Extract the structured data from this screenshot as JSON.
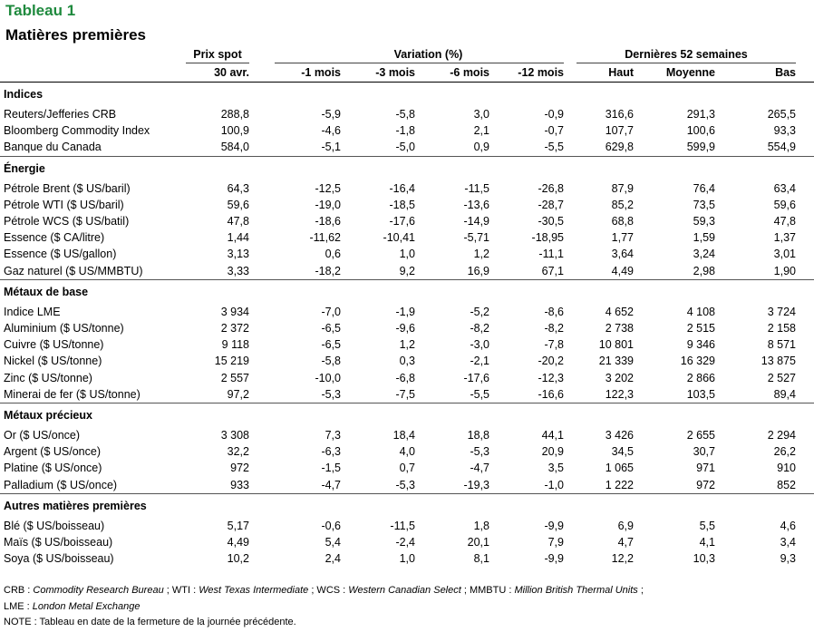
{
  "title": "Tableau 1",
  "subtitle": "Matières premières",
  "header": {
    "group_spot": "Prix spot",
    "group_var": "Variation (%)",
    "group_52": "Dernières 52 semaines",
    "cols": [
      "30 avr.",
      "-1 mois",
      "-3 mois",
      "-6 mois",
      "-12 mois",
      "Haut",
      "Moyenne",
      "Bas"
    ]
  },
  "sections": [
    {
      "name": "Indices",
      "rows": [
        [
          "Reuters/Jefferies CRB",
          "288,8",
          "-5,9",
          "-5,8",
          "3,0",
          "-0,9",
          "316,6",
          "291,3",
          "265,5"
        ],
        [
          "Bloomberg Commodity Index",
          "100,9",
          "-4,6",
          "-1,8",
          "2,1",
          "-0,7",
          "107,7",
          "100,6",
          "93,3"
        ],
        [
          "Banque du Canada",
          "584,0",
          "-5,1",
          "-5,0",
          "0,9",
          "-5,5",
          "629,8",
          "599,9",
          "554,9"
        ]
      ]
    },
    {
      "name": "Énergie",
      "rows": [
        [
          "Pétrole Brent ($ US/baril)",
          "64,3",
          "-12,5",
          "-16,4",
          "-11,5",
          "-26,8",
          "87,9",
          "76,4",
          "63,4"
        ],
        [
          "Pétrole WTI ($ US/baril)",
          "59,6",
          "-19,0",
          "-18,5",
          "-13,6",
          "-28,7",
          "85,2",
          "73,5",
          "59,6"
        ],
        [
          "Pétrole WCS ($ US/batil)",
          "47,8",
          "-18,6",
          "-17,6",
          "-14,9",
          "-30,5",
          "68,8",
          "59,3",
          "47,8"
        ],
        [
          "Essence ($ CA/litre)",
          "1,44",
          "-11,62",
          "-10,41",
          "-5,71",
          "-18,95",
          "1,77",
          "1,59",
          "1,37"
        ],
        [
          "Essence ($ US/gallon)",
          "3,13",
          "0,6",
          "1,0",
          "1,2",
          "-11,1",
          "3,64",
          "3,24",
          "3,01"
        ],
        [
          "Gaz naturel ($ US/MMBTU)",
          "3,33",
          "-18,2",
          "9,2",
          "16,9",
          "67,1",
          "4,49",
          "2,98",
          "1,90"
        ]
      ]
    },
    {
      "name": "Métaux de base",
      "rows": [
        [
          "Indice LME",
          "3 934",
          "-7,0",
          "-1,9",
          "-5,2",
          "-8,6",
          "4 652",
          "4 108",
          "3 724"
        ],
        [
          "Aluminium ($ US/tonne)",
          "2 372",
          "-6,5",
          "-9,6",
          "-8,2",
          "-8,2",
          "2 738",
          "2 515",
          "2 158"
        ],
        [
          "Cuivre ($ US/tonne)",
          "9 118",
          "-6,5",
          "1,2",
          "-3,0",
          "-7,8",
          "10 801",
          "9 346",
          "8 571"
        ],
        [
          "Nickel ($ US/tonne)",
          "15 219",
          "-5,8",
          "0,3",
          "-2,1",
          "-20,2",
          "21 339",
          "16 329",
          "13 875"
        ],
        [
          "Zinc ($ US/tonne)",
          "2 557",
          "-10,0",
          "-6,8",
          "-17,6",
          "-12,3",
          "3 202",
          "2 866",
          "2 527"
        ],
        [
          "Minerai de fer ($ US/tonne)",
          "97,2",
          "-5,3",
          "-7,5",
          "-5,5",
          "-16,6",
          "122,3",
          "103,5",
          "89,4"
        ]
      ]
    },
    {
      "name": "Métaux précieux",
      "rows": [
        [
          "Or ($ US/once)",
          "3 308",
          "7,3",
          "18,4",
          "18,8",
          "44,1",
          "3 426",
          "2 655",
          "2 294"
        ],
        [
          "Argent ($ US/once)",
          "32,2",
          "-6,3",
          "4,0",
          "-5,3",
          "20,9",
          "34,5",
          "30,7",
          "26,2"
        ],
        [
          "Platine ($ US/once)",
          "972",
          "-1,5",
          "0,7",
          "-4,7",
          "3,5",
          "1 065",
          "971",
          "910"
        ],
        [
          "Palladium ($ US/once)",
          "933",
          "-4,7",
          "-5,3",
          "-19,3",
          "-1,0",
          "1 222",
          "972",
          "852"
        ]
      ]
    },
    {
      "name": "Autres matières premières",
      "rows": [
        [
          "Blé ($ US/boisseau)",
          "5,17",
          "-0,6",
          "-11,5",
          "1,8",
          "-9,9",
          "6,9",
          "5,5",
          "4,6"
        ],
        [
          "Maïs ($ US/boisseau)",
          "4,49",
          "5,4",
          "-2,4",
          "20,1",
          "7,9",
          "4,7",
          "4,1",
          "3,4"
        ],
        [
          "Soya ($ US/boisseau)",
          "10,2",
          "2,4",
          "1,0",
          "8,1",
          "-9,9",
          "12,2",
          "10,3",
          "9,3"
        ]
      ]
    }
  ],
  "notes": {
    "line1_parts": [
      {
        "t": "CRB : ",
        "i": false
      },
      {
        "t": "Commodity Research Bureau",
        "i": true
      },
      {
        "t": " ; WTI : ",
        "i": false
      },
      {
        "t": "West Texas Intermediate",
        "i": true
      },
      {
        "t": " ; WCS : ",
        "i": false
      },
      {
        "t": "Western Canadian Select",
        "i": true
      },
      {
        "t": " ; MMBTU : ",
        "i": false
      },
      {
        "t": "Million British Thermal Units",
        "i": true
      },
      {
        "t": " ;",
        "i": false
      }
    ],
    "line2_parts": [
      {
        "t": "LME : ",
        "i": false
      },
      {
        "t": "London Metal Exchange",
        "i": true
      }
    ],
    "line3": "NOTE : Tableau en date de la fermeture de la journée précédente."
  }
}
